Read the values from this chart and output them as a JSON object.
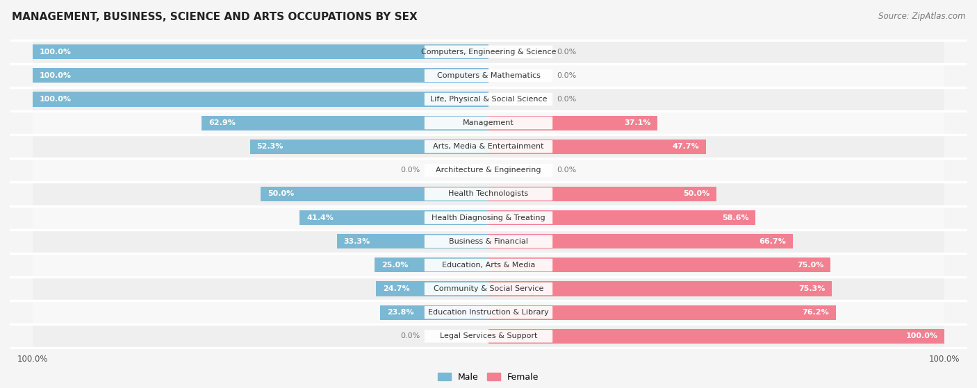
{
  "title": "MANAGEMENT, BUSINESS, SCIENCE AND ARTS OCCUPATIONS BY SEX",
  "source": "Source: ZipAtlas.com",
  "categories": [
    "Computers, Engineering & Science",
    "Computers & Mathematics",
    "Life, Physical & Social Science",
    "Management",
    "Arts, Media & Entertainment",
    "Architecture & Engineering",
    "Health Technologists",
    "Health Diagnosing & Treating",
    "Business & Financial",
    "Education, Arts & Media",
    "Community & Social Service",
    "Education Instruction & Library",
    "Legal Services & Support"
  ],
  "male": [
    100.0,
    100.0,
    100.0,
    62.9,
    52.3,
    0.0,
    50.0,
    41.4,
    33.3,
    25.0,
    24.7,
    23.8,
    0.0
  ],
  "female": [
    0.0,
    0.0,
    0.0,
    37.1,
    47.7,
    0.0,
    50.0,
    58.6,
    66.7,
    75.0,
    75.3,
    76.2,
    100.0
  ],
  "male_color": "#7bb8d4",
  "female_color": "#f28090",
  "bg_color": "#f5f5f5",
  "bar_bg_color": "#e8e8e8",
  "row_bg_color": "#f0f0f0",
  "title_fontsize": 11,
  "label_fontsize": 8,
  "pct_fontsize": 8,
  "source_fontsize": 8.5
}
